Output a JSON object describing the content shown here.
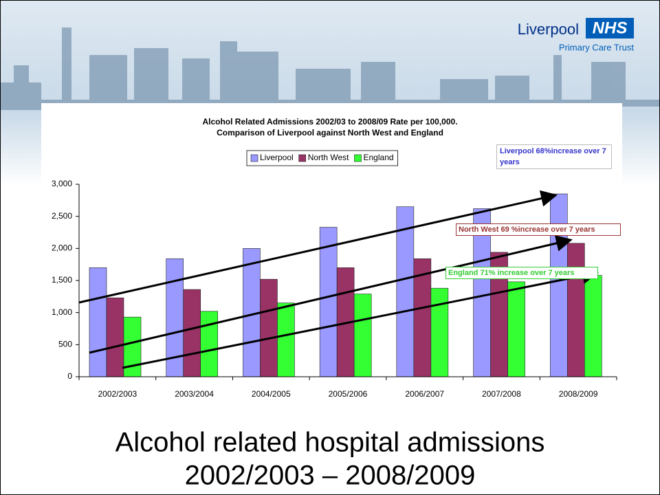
{
  "header": {
    "organisation": "Liverpool",
    "logo": "NHS",
    "subtitle": "Primary Care Trust"
  },
  "chart_data": {
    "type": "bar",
    "title": "Alcohol Related Admissions 2002/03 to 2008/09  Rate per 100,000.",
    "subtitle": "Comparison of Liverpool against North West and England",
    "categories": [
      "2002/2003",
      "2003/2004",
      "2004/2005",
      "2005/2006",
      "2006/2007",
      "2007/2008",
      "2008/2009"
    ],
    "series": [
      {
        "name": "Liverpool",
        "color": "#9999ff",
        "values": [
          1700,
          1840,
          2000,
          2330,
          2650,
          2620,
          2850
        ]
      },
      {
        "name": "North West",
        "color": "#993366",
        "values": [
          1230,
          1360,
          1520,
          1700,
          1840,
          1940,
          2080
        ]
      },
      {
        "name": "England",
        "color": "#33ff33",
        "values": [
          930,
          1020,
          1150,
          1290,
          1380,
          1480,
          1580
        ]
      }
    ],
    "ylim": [
      0,
      3000
    ],
    "yticks": [
      0,
      500,
      {
        "value": 1000,
        "label": "1,000"
      },
      {
        "value": 1500,
        "label": "1,500"
      },
      {
        "value": 2000,
        "label": "2,000"
      },
      {
        "value": 2500,
        "label": "2,500"
      },
      {
        "value": 3000,
        "label": "3,000"
      }
    ],
    "legend": "top",
    "annotations": [
      {
        "text": "Liverpool 68%increase over 7 years",
        "color": "#3333cc"
      },
      {
        "text": "North West 69 %increase over 7 years",
        "color": "#993333"
      },
      {
        "text": "England 71% increase over 7 years",
        "color": "#33cc33"
      }
    ]
  },
  "slide_title": [
    "Alcohol related hospital admissions",
    "2002/2003 – 2008/2009"
  ]
}
